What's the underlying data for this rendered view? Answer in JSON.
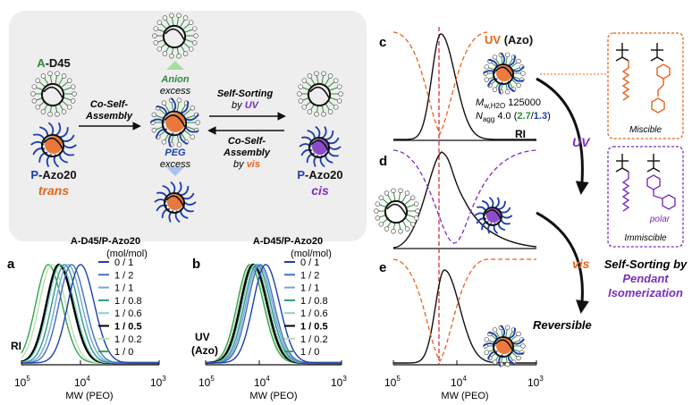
{
  "colors": {
    "black": "#111111",
    "green": "#2e8b3a",
    "blue": "#1c3fae",
    "orange": "#e8631a",
    "purple": "#7a2fc0",
    "panel_bg": "#eeeeee",
    "legend": [
      "#1b3fae",
      "#3f6fc4",
      "#77a3da",
      "#2b9a86",
      "#8fd0c7",
      "#000000",
      "#b9dfac",
      "#35a24d"
    ]
  },
  "scheme": {
    "a_d45_prefix": "A",
    "a_d45_suffix": "-D45",
    "co_self_1": "Co-Self-",
    "co_self_2": "Assembly",
    "anion": "Anion",
    "excess": "excess",
    "peg": "PEG",
    "self_sorting": "Self-Sorting",
    "by": "by",
    "uv": "UV",
    "co_self_rev_1": "Co-Self-",
    "co_self_rev_2": "Assembly",
    "by_vis": "by",
    "vis": "vis",
    "p_azo20": "-Azo20",
    "p_prefix": "P",
    "trans": "trans",
    "cis": "cis"
  },
  "panel_a": {
    "letter": "a",
    "legend_title_1": "A-D45/P-Azo20",
    "legend_title_2": "(mol/mol)",
    "entries": [
      "0 / 1",
      "1 / 2",
      "1 / 1",
      "1 / 0.8",
      "1 / 0.6",
      "1 / 0.5",
      "1 / 0.2",
      "1 / 0"
    ],
    "bold_index": 5,
    "detector": "RI",
    "tick_left_base": "10",
    "tick_left_exp": "5",
    "tick_mid_base": "10",
    "tick_mid_exp": "4",
    "tick_right_base": "10",
    "tick_right_exp": "3",
    "xlabel": "MW (PEO)"
  },
  "panel_b": {
    "letter": "b",
    "legend_title_1": "A-D45/P-Azo20",
    "legend_title_2": "(mol/mol)",
    "entries": [
      "0 / 1",
      "1 / 2",
      "1 / 1",
      "1 / 0.8",
      "1 / 0.6",
      "1 / 0.5",
      "1 / 0.2",
      "1 / 0"
    ],
    "detector_1": "UV",
    "detector_2": "(Azo)",
    "tick_left_base": "10",
    "tick_left_exp": "5",
    "tick_mid_base": "10",
    "tick_mid_exp": "4",
    "tick_right_base": "10",
    "tick_right_exp": "3",
    "xlabel": "MW (PEO)"
  },
  "panel_c": {
    "letter": "c",
    "uv_label": "UV",
    "azo_label": "(Azo)",
    "ri_label": "RI",
    "mw_symbol": "M",
    "mw_sub": "w,H2O",
    "mw_value": "125000",
    "nagg_symbol": "N",
    "nagg_sub": "agg",
    "nagg_value": "4.0",
    "nagg_paren_open": "(",
    "nagg_green": "2.7",
    "nagg_slash": "/",
    "nagg_blue": "1.3",
    "nagg_paren_close": ")"
  },
  "panel_d": {
    "letter": "d"
  },
  "panel_e": {
    "letter": "e",
    "tick_left_base": "10",
    "tick_left_exp": "5",
    "tick_mid_base": "10",
    "tick_mid_exp": "4",
    "tick_right_base": "10",
    "tick_right_exp": "3",
    "xlabel": "MW (PEO)"
  },
  "right": {
    "uv_arrow": "UV",
    "vis_arrow": "vis",
    "reversible": "Reversible",
    "miscible": "Miscible",
    "immiscible": "Immiscible",
    "polar": "polar",
    "summary_1": "Self-Sorting",
    "summary_by": "by",
    "summary_2": "Pendant",
    "summary_3": "Isomerization"
  }
}
